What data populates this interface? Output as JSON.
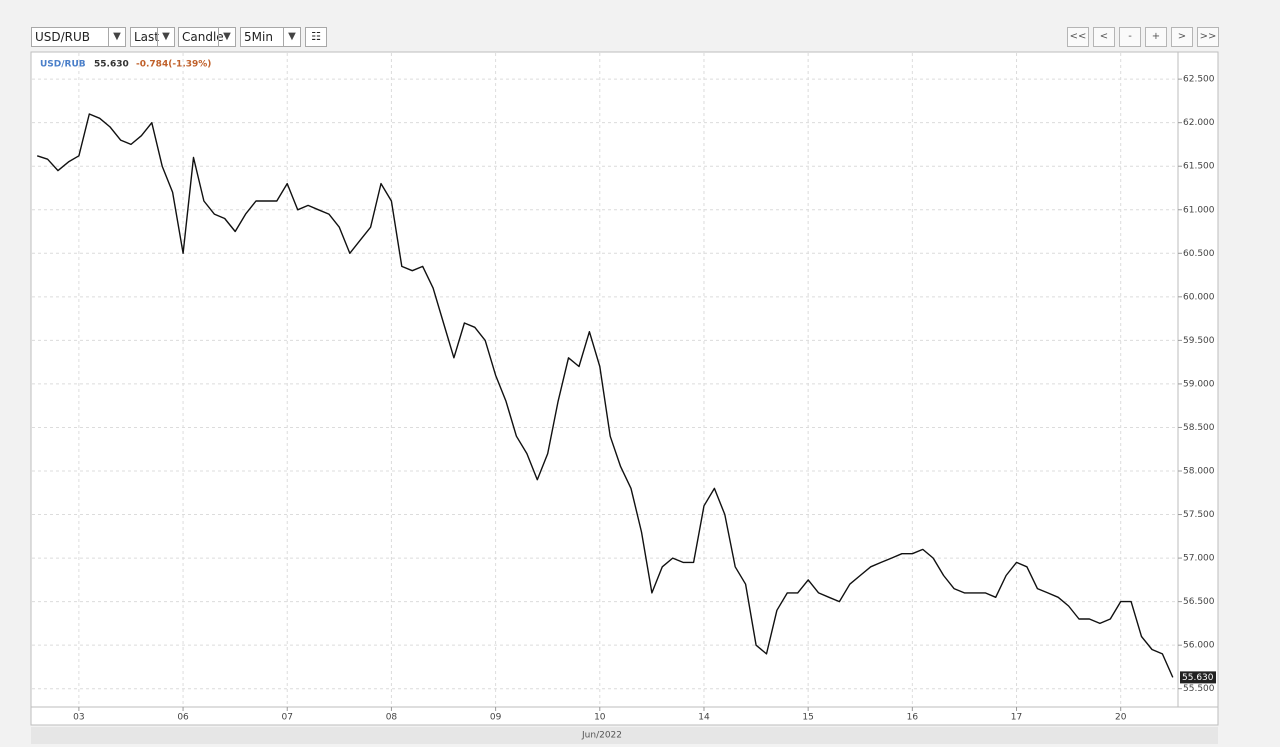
{
  "toolbar": {
    "symbol": "USD/RUB",
    "price_field": "Last",
    "chart_style": "Candle",
    "interval": "5Min",
    "nav_buttons": [
      "<<",
      "<",
      "-",
      "+",
      ">",
      ">>"
    ]
  },
  "chart_data": {
    "type": "line",
    "legend_symbol": "USD/RUB",
    "last_value": {
      "value": 55.63,
      "label": "55.630"
    },
    "change": "-0.784(-1.39%)",
    "x_axis_label": "Jun/2022",
    "categories": [
      null,
      null,
      null,
      null,
      "03",
      null,
      null,
      null,
      null,
      null,
      null,
      null,
      null,
      null,
      "06",
      null,
      null,
      null,
      null,
      null,
      null,
      null,
      null,
      null,
      "07",
      null,
      null,
      null,
      null,
      null,
      null,
      null,
      null,
      null,
      "08",
      null,
      null,
      null,
      null,
      null,
      null,
      null,
      null,
      null,
      "09",
      null,
      null,
      null,
      null,
      null,
      null,
      null,
      null,
      null,
      "10",
      null,
      null,
      null,
      null,
      null,
      null,
      null,
      null,
      null,
      "14",
      null,
      null,
      null,
      null,
      null,
      null,
      null,
      null,
      null,
      "15",
      null,
      null,
      null,
      null,
      null,
      null,
      null,
      null,
      null,
      "16",
      null,
      null,
      null,
      null,
      null,
      null,
      null,
      null,
      null,
      "17",
      null,
      null,
      null,
      null,
      null,
      null,
      null,
      null,
      null,
      "20",
      null,
      null,
      null,
      null,
      null
    ],
    "series": [
      {
        "name": "USD/RUB",
        "color": "#111111",
        "values": [
          61.62,
          61.58,
          61.45,
          61.55,
          61.62,
          62.1,
          62.05,
          61.95,
          61.8,
          61.75,
          61.85,
          62.0,
          61.5,
          61.2,
          60.5,
          61.6,
          61.1,
          60.95,
          60.9,
          60.75,
          60.95,
          61.1,
          61.1,
          61.1,
          61.3,
          61.0,
          61.05,
          61.0,
          60.95,
          60.8,
          60.5,
          60.65,
          60.8,
          61.3,
          61.1,
          60.35,
          60.3,
          60.35,
          60.1,
          59.7,
          59.3,
          59.7,
          59.65,
          59.5,
          59.1,
          58.8,
          58.4,
          58.2,
          57.9,
          58.2,
          58.8,
          59.3,
          59.2,
          59.6,
          59.2,
          58.4,
          58.05,
          57.8,
          57.3,
          56.6,
          56.9,
          57.0,
          56.95,
          56.95,
          57.6,
          57.8,
          57.5,
          56.9,
          56.7,
          56.0,
          55.9,
          56.4,
          56.6,
          56.6,
          56.75,
          56.6,
          56.55,
          56.5,
          56.7,
          56.8,
          56.9,
          56.95,
          57.0,
          57.05,
          57.05,
          57.1,
          57.0,
          56.8,
          56.65,
          56.6,
          56.6,
          56.6,
          56.55,
          56.8,
          56.95,
          56.9,
          56.65,
          56.6,
          56.55,
          56.45,
          56.3,
          56.3,
          56.25,
          56.3,
          56.5,
          56.5,
          56.1,
          55.95,
          55.9,
          55.63
        ]
      }
    ],
    "ylim": [
      55.29,
      62.8
    ],
    "yticks": [
      {
        "value": 55.5,
        "label": "55.500"
      },
      {
        "value": 56,
        "label": "56.000"
      },
      {
        "value": 56.5,
        "label": "56.500"
      },
      {
        "value": 57,
        "label": "57.000"
      },
      {
        "value": 57.5,
        "label": "57.500"
      },
      {
        "value": 58,
        "label": "58.000"
      },
      {
        "value": 58.5,
        "label": "58.500"
      },
      {
        "value": 59,
        "label": "59.000"
      },
      {
        "value": 59.5,
        "label": "59.500"
      },
      {
        "value": 60,
        "label": "60.000"
      },
      {
        "value": 60.5,
        "label": "60.500"
      },
      {
        "value": 61,
        "label": "61.000"
      },
      {
        "value": 61.5,
        "label": "61.500"
      },
      {
        "value": 62,
        "label": "62.000"
      },
      {
        "value": 62.5,
        "label": "62.500"
      }
    ],
    "grid": true
  }
}
